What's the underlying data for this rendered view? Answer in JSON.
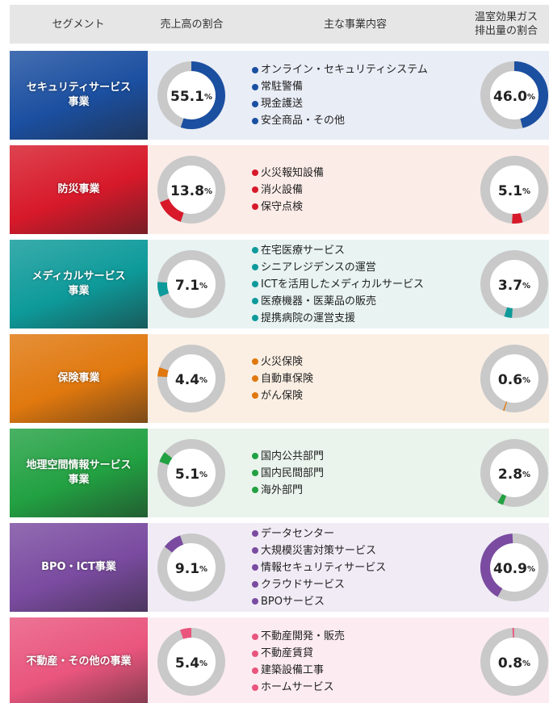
{
  "header": {
    "segment": "セグメント",
    "revenue": "売上高の割合",
    "business": "主な事業内容",
    "ghg": [
      "温室効果ガス",
      "排出量の割合"
    ]
  },
  "unit": "%",
  "segments": [
    {
      "name": [
        "セキュリティサービス",
        "事業"
      ],
      "color": "#1b4fa0",
      "background": "#e9edf6",
      "revenue": {
        "value": 55.1,
        "label": "55.1"
      },
      "ghg": {
        "value": 46.0,
        "label": "46.0"
      },
      "items": [
        "オンライン・セキュリティシステム",
        "常駐警備",
        "現金護送",
        "安全商品・その他"
      ]
    },
    {
      "name": [
        "防災事業"
      ],
      "color": "#d7192a",
      "background": "#fbece8",
      "revenue": {
        "value": 13.8,
        "label": "13.8"
      },
      "ghg": {
        "value": 5.1,
        "label": "5.1"
      },
      "items": [
        "火災報知設備",
        "消火設備",
        "保守点検"
      ]
    },
    {
      "name": [
        "メディカルサービス",
        "事業"
      ],
      "color": "#0e9a9a",
      "background": "#e8f3f2",
      "revenue": {
        "value": 7.1,
        "label": "7.1"
      },
      "ghg": {
        "value": 3.7,
        "label": "3.7"
      },
      "items": [
        "在宅医療サービス",
        "シニアレジデンスの運営",
        "ICTを活用したメディカルサービス",
        "医療機器・医薬品の販売",
        "提携病院の運営支援"
      ]
    },
    {
      "name": [
        "保険事業"
      ],
      "color": "#e0780e",
      "background": "#fbefe4",
      "revenue": {
        "value": 4.4,
        "label": "4.4"
      },
      "ghg": {
        "value": 0.6,
        "label": "0.6"
      },
      "items": [
        "火災保険",
        "自動車保険",
        "がん保険"
      ]
    },
    {
      "name": [
        "地理空間情報サービス",
        "事業"
      ],
      "color": "#22a142",
      "background": "#eaf4ec",
      "revenue": {
        "value": 5.1,
        "label": "5.1"
      },
      "ghg": {
        "value": 2.8,
        "label": "2.8"
      },
      "items": [
        "国内公共部門",
        "国内民間部門",
        "海外部門"
      ]
    },
    {
      "name": [
        "BPO・ICT事業"
      ],
      "color": "#7a4ba0",
      "background": "#f0ebf5",
      "revenue": {
        "value": 9.1,
        "label": "9.1"
      },
      "ghg": {
        "value": 40.9,
        "label": "40.9"
      },
      "items": [
        "データセンター",
        "大規模災害対策サービス",
        "情報セキュリティサービス",
        "クラウドサービス",
        "BPOサービス"
      ]
    },
    {
      "name": [
        "不動産・その他の事業"
      ],
      "color": "#e9557d",
      "background": "#fcecf1",
      "revenue": {
        "value": 5.4,
        "label": "5.4"
      },
      "ghg": {
        "value": 0.8,
        "label": "0.8"
      },
      "items": [
        "不動産開発・販売",
        "不動産賃貸",
        "建築設備工事",
        "ホームサービス"
      ]
    }
  ]
}
